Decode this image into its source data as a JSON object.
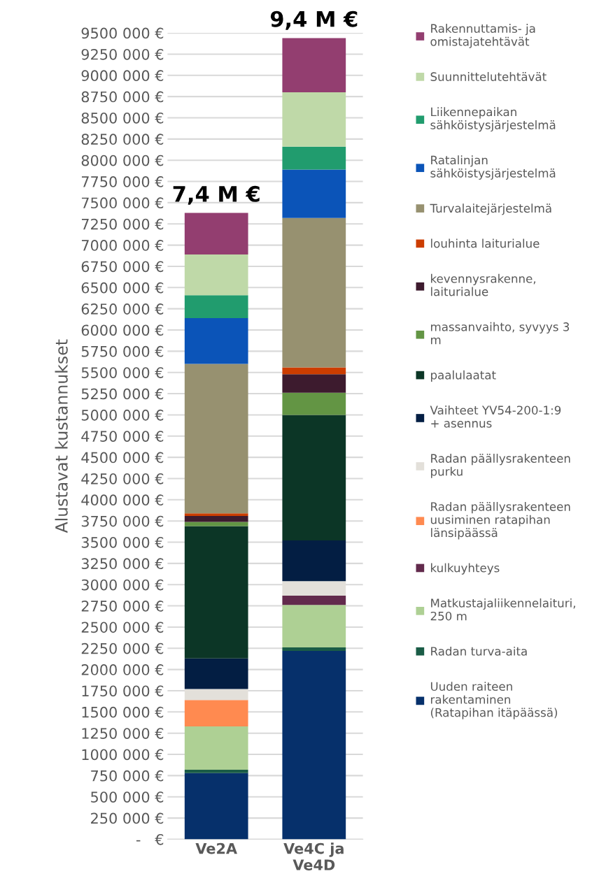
{
  "chart_data": {
    "type": "bar",
    "stacked": true,
    "ylabel": "Alustavat kustannukset",
    "categories": [
      "Ve2A",
      "Ve4C ja\nVe4D"
    ],
    "series": [
      {
        "name": "Uuden raiteen\nrakentaminen\n(Ratapihan itäpäässä)",
        "color": "#06306b",
        "values": [
          780000,
          2220000
        ]
      },
      {
        "name": "Radan turva-aita",
        "color": "#1a5c46",
        "values": [
          40000,
          40000
        ]
      },
      {
        "name": "Matkustajaliikennelaituri,\n250 m",
        "color": "#aed094",
        "values": [
          510000,
          500000
        ]
      },
      {
        "name": "kulkuyhteys",
        "color": "#622a4c",
        "values": [
          0,
          110000
        ]
      },
      {
        "name": "Radan päällysrakenteen\nuusiminen ratapihan\nlänsipäässä",
        "color": "#ff8a50",
        "values": [
          310000,
          0
        ]
      },
      {
        "name": "Radan päällysrakenteen\npurku",
        "color": "#e3e0da",
        "values": [
          130000,
          170000
        ]
      },
      {
        "name": "Vaihteet YV54-200-1:9\n+ asennus",
        "color": "#031e43",
        "values": [
          360000,
          480000
        ]
      },
      {
        "name": "paalulaatat",
        "color": "#0c3626",
        "values": [
          1560000,
          1480000
        ]
      },
      {
        "name": "massanvaihto, syvyys 3\nm",
        "color": "#639544",
        "values": [
          50000,
          260000
        ]
      },
      {
        "name": "kevennysrakenne,\nlaiturialue",
        "color": "#3d1b2e",
        "values": [
          70000,
          220000
        ]
      },
      {
        "name": "louhinta laiturialue",
        "color": "#cc3d00",
        "values": [
          30000,
          80000
        ]
      },
      {
        "name": "Turvalaitejärjestelmä",
        "color": "#979170",
        "values": [
          1760000,
          1760000
        ]
      },
      {
        "name": "Ratalinjan\nsähköistysjärjestelmä",
        "color": "#0b54b8",
        "values": [
          540000,
          570000
        ]
      },
      {
        "name": "Liikennepaikan\nsähköistysjärjestelmä",
        "color": "#219c6e",
        "values": [
          270000,
          270000
        ]
      },
      {
        "name": "Suunnittelutehtävät",
        "color": "#bfd9a8",
        "values": [
          480000,
          640000
        ]
      },
      {
        "name": "Rakennuttamis- ja\nomistajatehtävät",
        "color": "#933e70",
        "values": [
          490000,
          640000
        ]
      }
    ],
    "totals": [
      "7,4 M €",
      "9,4 M €"
    ],
    "ylim": [
      0,
      9500000
    ],
    "yticks": [
      {
        "value": 0,
        "label": "-   €"
      },
      {
        "value": 250000,
        "label": "250 000 €"
      },
      {
        "value": 500000,
        "label": "500 000 €"
      },
      {
        "value": 750000,
        "label": "750 000 €"
      },
      {
        "value": 1000000,
        "label": "1000 000 €"
      },
      {
        "value": 1250000,
        "label": "1250 000 €"
      },
      {
        "value": 1500000,
        "label": "1500 000 €"
      },
      {
        "value": 1750000,
        "label": "1750 000 €"
      },
      {
        "value": 2000000,
        "label": "2000 000 €"
      },
      {
        "value": 2250000,
        "label": "2250 000 €"
      },
      {
        "value": 2500000,
        "label": "2500 000 €"
      },
      {
        "value": 2750000,
        "label": "2750 000 €"
      },
      {
        "value": 3000000,
        "label": "3000 000 €"
      },
      {
        "value": 3250000,
        "label": "3250 000 €"
      },
      {
        "value": 3500000,
        "label": "3500 000 €"
      },
      {
        "value": 3750000,
        "label": "3750 000 €"
      },
      {
        "value": 4000000,
        "label": "4000 000 €"
      },
      {
        "value": 4250000,
        "label": "4250 000 €"
      },
      {
        "value": 4500000,
        "label": "4500 000 €"
      },
      {
        "value": 4750000,
        "label": "4750 000 €"
      },
      {
        "value": 5000000,
        "label": "5000 000 €"
      },
      {
        "value": 5250000,
        "label": "5250 000 €"
      },
      {
        "value": 5500000,
        "label": "5500 000 €"
      },
      {
        "value": 5750000,
        "label": "5750 000 €"
      },
      {
        "value": 6000000,
        "label": "6000 000 €"
      },
      {
        "value": 6250000,
        "label": "6250 000 €"
      },
      {
        "value": 6500000,
        "label": "6500 000 €"
      },
      {
        "value": 6750000,
        "label": "6750 000 €"
      },
      {
        "value": 7000000,
        "label": "7000 000 €"
      },
      {
        "value": 7250000,
        "label": "7250 000 €"
      },
      {
        "value": 7500000,
        "label": "7500 000 €"
      },
      {
        "value": 7750000,
        "label": "7750 000 €"
      },
      {
        "value": 8000000,
        "label": "8000 000 €"
      },
      {
        "value": 8250000,
        "label": "8250 000 €"
      },
      {
        "value": 8500000,
        "label": "8500 000 €"
      },
      {
        "value": 8750000,
        "label": "8750 000 €"
      },
      {
        "value": 9000000,
        "label": "9000 000 €"
      },
      {
        "value": 9250000,
        "label": "9250 000 €"
      },
      {
        "value": 9500000,
        "label": "9500 000 €"
      }
    ],
    "grid": "y",
    "legend": "right"
  }
}
